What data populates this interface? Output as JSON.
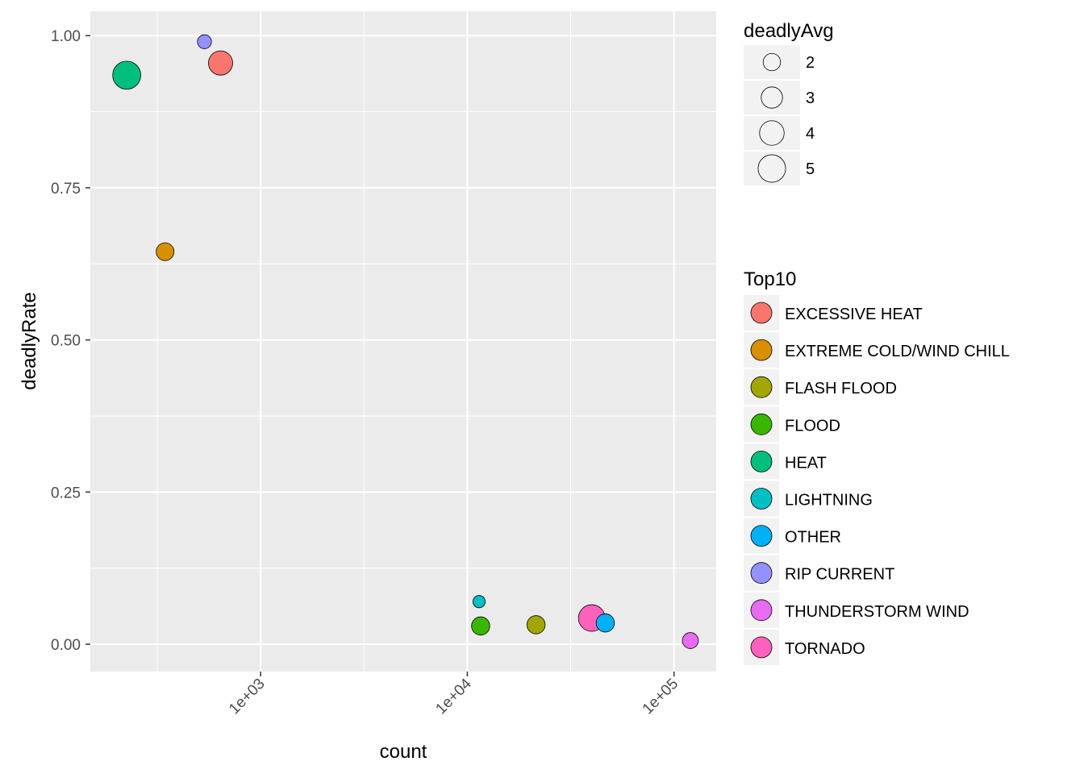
{
  "chart_data": {
    "type": "scatter",
    "title": "",
    "xlabel": "count",
    "ylabel": "deadlyRate",
    "xscale": "log10",
    "xlim": [
      150,
      160000
    ],
    "ylim": [
      -0.045,
      1.04
    ],
    "x_ticks": [
      {
        "value": 1000,
        "label": "1e+03"
      },
      {
        "value": 10000,
        "label": "1e+04"
      },
      {
        "value": 100000,
        "label": "1e+05"
      }
    ],
    "y_ticks": [
      {
        "value": 0.0,
        "label": "0.00"
      },
      {
        "value": 0.25,
        "label": "0.25"
      },
      {
        "value": 0.5,
        "label": "0.50"
      },
      {
        "value": 0.75,
        "label": "0.75"
      },
      {
        "value": 1.0,
        "label": "1.00"
      }
    ],
    "grid": true,
    "panel_background": "#ebebeb",
    "points": [
      {
        "category": "HEAT",
        "count": 225,
        "deadlyRate": 0.935,
        "deadlyAvg": 5.2
      },
      {
        "category": "RIP CURRENT",
        "count": 535,
        "deadlyRate": 0.99,
        "deadlyAvg": 1.3
      },
      {
        "category": "EXCESSIVE HEAT",
        "count": 640,
        "deadlyRate": 0.955,
        "deadlyAvg": 3.9
      },
      {
        "category": "EXTREME COLD/WIND CHILL",
        "count": 345,
        "deadlyRate": 0.645,
        "deadlyAvg": 2.1
      },
      {
        "category": "LIGHTNING",
        "count": 11400,
        "deadlyRate": 0.07,
        "deadlyAvg": 1.0
      },
      {
        "category": "FLOOD",
        "count": 11600,
        "deadlyRate": 0.03,
        "deadlyAvg": 2.2
      },
      {
        "category": "FLASH FLOOD",
        "count": 21500,
        "deadlyRate": 0.032,
        "deadlyAvg": 2.2
      },
      {
        "category": "OTHER",
        "count": 46500,
        "deadlyRate": 0.035,
        "deadlyAvg": 2.2
      },
      {
        "category": "TORNADO",
        "count": 40000,
        "deadlyRate": 0.043,
        "deadlyAvg": 4.7
      },
      {
        "category": "THUNDERSTORM WIND",
        "count": 120000,
        "deadlyRate": 0.006,
        "deadlyAvg": 1.7
      }
    ],
    "size_legend": {
      "title": "deadlyAvg",
      "entries": [
        {
          "label": "2",
          "value": 2
        },
        {
          "label": "3",
          "value": 3
        },
        {
          "label": "4",
          "value": 4
        },
        {
          "label": "5",
          "value": 5
        }
      ]
    },
    "fill_legend": {
      "title": "Top10",
      "entries": [
        {
          "label": "EXCESSIVE HEAT",
          "color": "#f8766d"
        },
        {
          "label": "EXTREME COLD/WIND CHILL",
          "color": "#d89000"
        },
        {
          "label": "FLASH FLOOD",
          "color": "#a3a500"
        },
        {
          "label": "FLOOD",
          "color": "#39b600"
        },
        {
          "label": "HEAT",
          "color": "#00bf7d"
        },
        {
          "label": "LIGHTNING",
          "color": "#00bfc4"
        },
        {
          "label": "OTHER",
          "color": "#00b0f6"
        },
        {
          "label": "RIP CURRENT",
          "color": "#9590ff"
        },
        {
          "label": "THUNDERSTORM WIND",
          "color": "#e76bf3"
        },
        {
          "label": "TORNADO",
          "color": "#ff62bc"
        }
      ]
    },
    "legend_position": "right"
  }
}
